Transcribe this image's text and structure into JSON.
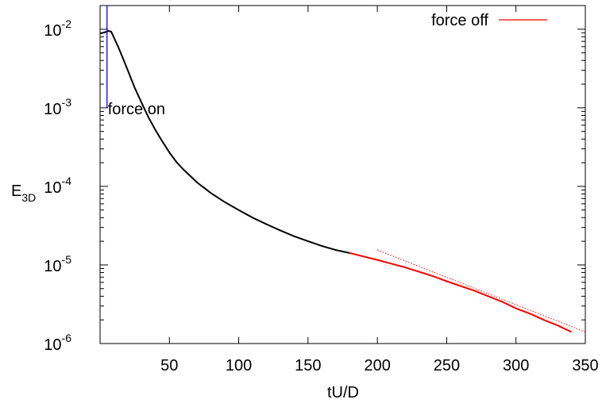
{
  "chart_data": {
    "type": "line",
    "xlabel": "tU/D",
    "ylabel": "E",
    "ylabel_subscript": "3D",
    "xlim": [
      0,
      350
    ],
    "ylim": [
      1e-06,
      0.02
    ],
    "yscale": "log",
    "grid": false,
    "legend_position": "top-right",
    "x_ticks": [
      {
        "value": 50,
        "label": "50"
      },
      {
        "value": 100,
        "label": "100"
      },
      {
        "value": 150,
        "label": "150"
      },
      {
        "value": 200,
        "label": "200"
      },
      {
        "value": 250,
        "label": "250"
      },
      {
        "value": 300,
        "label": "300"
      },
      {
        "value": 350,
        "label": "350"
      }
    ],
    "y_ticks": [
      {
        "value": 1e-06,
        "base": "10",
        "exp": "-6"
      },
      {
        "value": 1e-05,
        "base": "10",
        "exp": "-5"
      },
      {
        "value": 0.0001,
        "base": "10",
        "exp": "-4"
      },
      {
        "value": 0.001,
        "base": "10",
        "exp": "-3"
      },
      {
        "value": 0.01,
        "base": "10",
        "exp": "-2"
      }
    ],
    "series": [
      {
        "color": "#000000",
        "x": [
          0,
          4,
          6,
          8,
          10,
          13,
          16,
          20,
          25,
          30,
          35,
          40,
          45,
          50,
          55,
          60,
          70,
          80,
          90,
          100,
          110,
          120,
          130,
          140,
          150,
          160,
          170,
          180
        ],
        "y": [
          0.0088,
          0.0092,
          0.0095,
          0.0093,
          0.0078,
          0.006,
          0.0045,
          0.003,
          0.0018,
          0.00115,
          0.00075,
          0.00052,
          0.00037,
          0.00027,
          0.000205,
          0.000165,
          0.000112,
          8.2e-05,
          6.3e-05,
          5e-05,
          4e-05,
          3.3e-05,
          2.75e-05,
          2.32e-05,
          2e-05,
          1.74e-05,
          1.55e-05,
          1.42e-05
        ]
      },
      {
        "name": "force off",
        "color": "#ff0000",
        "x": [
          180,
          190,
          200,
          210,
          220,
          230,
          240,
          250,
          260,
          270,
          280,
          290,
          300,
          310,
          320,
          330,
          340
        ],
        "y": [
          1.42e-05,
          1.28e-05,
          1.16e-05,
          1.04e-05,
          9.3e-06,
          8.2e-06,
          7.2e-06,
          6.2e-06,
          5.4e-06,
          4.7e-06,
          4e-06,
          3.4e-06,
          2.8e-06,
          2.4e-06,
          2e-06,
          1.7e-06,
          1.4e-06
        ]
      },
      {
        "color": "#ff0000",
        "style": "dotted",
        "x": [
          200,
          350
        ],
        "y": [
          1.55e-05,
          1.4e-06
        ]
      }
    ],
    "annotations": [
      {
        "text": "force on",
        "color": "#0000ff",
        "line_x": 5,
        "line_y": [
          0.001,
          0.02
        ],
        "text_y": 0.001
      }
    ],
    "legend_label": "force off"
  }
}
